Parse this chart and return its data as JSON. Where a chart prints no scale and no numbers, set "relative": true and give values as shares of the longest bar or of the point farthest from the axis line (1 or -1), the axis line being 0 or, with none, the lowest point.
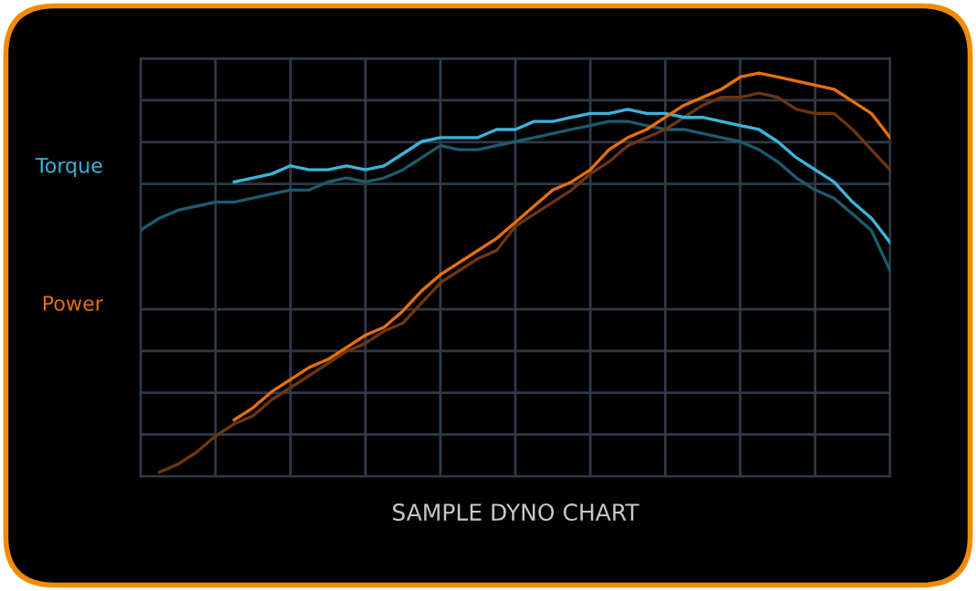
{
  "chart_data": {
    "type": "line",
    "title": "SAMPLE DYNO CHART",
    "relative": true,
    "grid": true,
    "categories": [
      null,
      null,
      null,
      null,
      null,
      null,
      null,
      null,
      null,
      null,
      null,
      null,
      null,
      null,
      null,
      null,
      null,
      null,
      null,
      null,
      null,
      null,
      null,
      null,
      null,
      null,
      null,
      null,
      null,
      null,
      null,
      null,
      null,
      null,
      null,
      null,
      null,
      null,
      null,
      null,
      null
    ],
    "series": [
      {
        "color": "#1d5a6e",
        "values": [
          0.61,
          0.64,
          0.66,
          0.67,
          0.68,
          0.68,
          0.69,
          0.7,
          0.71,
          0.71,
          0.73,
          0.74,
          0.73,
          0.74,
          0.76,
          0.79,
          0.82,
          0.81,
          0.81,
          0.82,
          0.83,
          0.84,
          0.85,
          0.86,
          0.87,
          0.88,
          0.88,
          0.87,
          0.86,
          0.86,
          0.85,
          0.84,
          0.83,
          0.81,
          0.78,
          0.74,
          0.71,
          0.69,
          0.65,
          0.61,
          0.51
        ]
      },
      {
        "color": "#6e3510",
        "values": [
          null,
          0.01,
          0.03,
          0.06,
          0.1,
          0.13,
          0.15,
          0.19,
          0.22,
          0.25,
          0.28,
          0.31,
          0.33,
          0.36,
          0.38,
          0.43,
          0.48,
          0.51,
          0.54,
          0.56,
          0.62,
          0.65,
          0.68,
          0.71,
          0.75,
          0.78,
          0.82,
          0.84,
          0.86,
          0.89,
          0.92,
          0.94,
          0.94,
          0.95,
          0.94,
          0.91,
          0.9,
          0.9,
          0.86,
          0.81,
          0.76
        ]
      },
      {
        "name": "Torque",
        "color": "#3bb4dc",
        "values": [
          null,
          null,
          null,
          null,
          null,
          0.73,
          0.74,
          0.75,
          0.77,
          0.76,
          0.76,
          0.77,
          0.76,
          0.77,
          0.8,
          0.83,
          0.84,
          0.84,
          0.84,
          0.86,
          0.86,
          0.88,
          0.88,
          0.89,
          0.9,
          0.9,
          0.91,
          0.9,
          0.9,
          0.89,
          0.89,
          0.88,
          0.87,
          0.86,
          0.83,
          0.79,
          0.76,
          0.73,
          0.68,
          0.64,
          0.58
        ]
      },
      {
        "name": "Power",
        "color": "#e8700a",
        "values": [
          null,
          null,
          null,
          null,
          null,
          0.14,
          0.17,
          0.21,
          0.24,
          0.27,
          0.29,
          0.32,
          0.35,
          0.37,
          0.41,
          0.46,
          0.5,
          0.53,
          0.56,
          0.59,
          0.63,
          0.67,
          0.71,
          0.73,
          0.76,
          0.81,
          0.84,
          0.86,
          0.89,
          0.92,
          0.94,
          0.96,
          0.99,
          1,
          0.99,
          0.98,
          0.97,
          0.96,
          0.93,
          0.9,
          0.84
        ]
      }
    ]
  }
}
